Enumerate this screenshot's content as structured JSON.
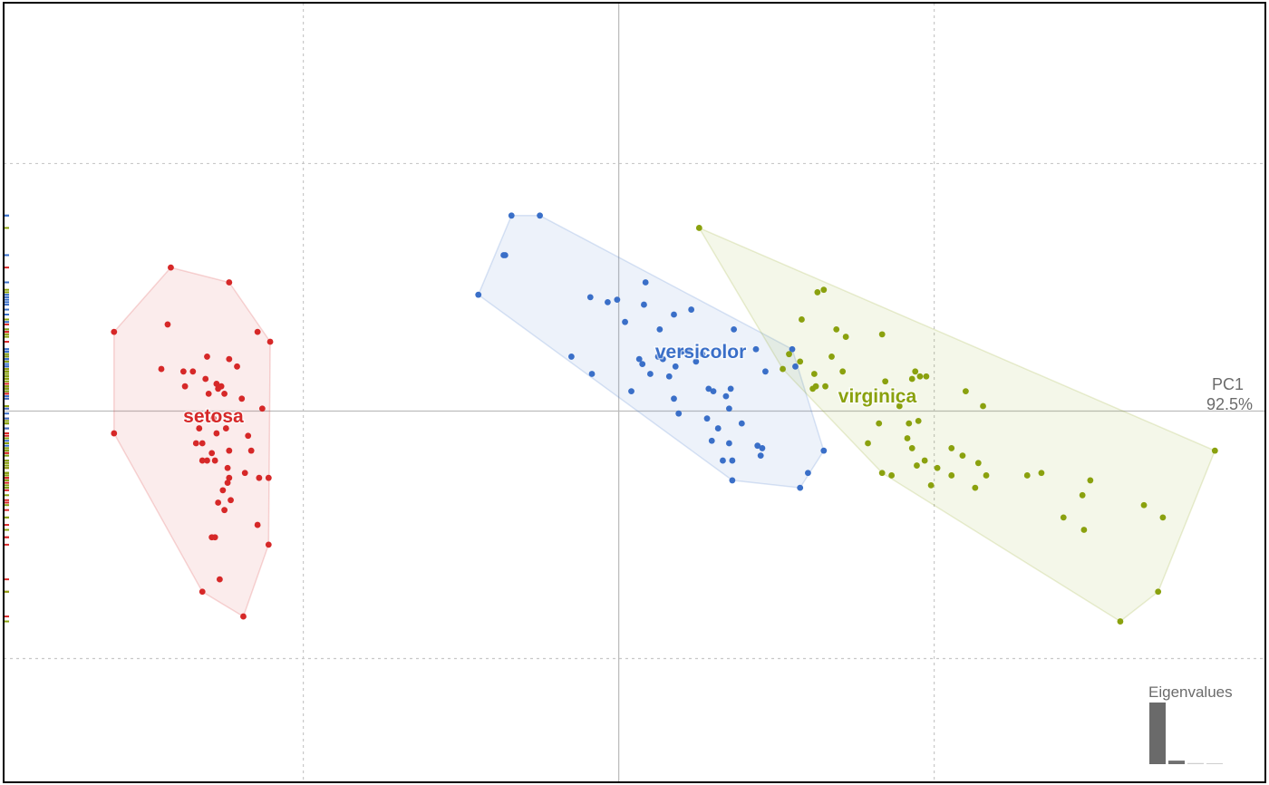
{
  "chart_data": {
    "type": "scatter",
    "title": "",
    "xlabel": "PC1",
    "x_variance": "92.5%",
    "xlim": [
      -3.9,
      4.1
    ],
    "ylim": [
      -1.5,
      1.65
    ],
    "grid": "dashed",
    "hulls": true,
    "rug": "left",
    "series": [
      {
        "name": "setosa",
        "color": "#d62828",
        "label_at": [
          -2.57,
          -0.02
        ],
        "points": [
          [
            -2.84,
            0.58
          ],
          [
            -2.47,
            0.52
          ],
          [
            -2.29,
            0.32
          ],
          [
            -2.21,
            0.28
          ],
          [
            -2.86,
            0.35
          ],
          [
            -2.47,
            0.21
          ],
          [
            -2.42,
            0.18
          ],
          [
            -2.52,
            0.1
          ],
          [
            -2.55,
            0.11
          ],
          [
            -2.6,
            0.07
          ],
          [
            -2.5,
            0.07
          ],
          [
            -2.39,
            0.05
          ],
          [
            -2.61,
            0.22
          ],
          [
            -2.7,
            0.16
          ],
          [
            -2.9,
            0.17
          ],
          [
            -2.62,
            0.13
          ],
          [
            -2.76,
            0.16
          ],
          [
            -2.33,
            -0.16
          ],
          [
            -2.66,
            -0.07
          ],
          [
            -2.49,
            -0.07
          ],
          [
            -2.35,
            -0.1
          ],
          [
            -2.75,
            0.1
          ],
          [
            -2.54,
            0.09
          ],
          [
            -2.26,
            0.01
          ],
          [
            -2.55,
            -0.09
          ],
          [
            -2.64,
            -0.13
          ],
          [
            -2.68,
            -0.13
          ],
          [
            -2.47,
            -0.16
          ],
          [
            -2.58,
            -0.17
          ],
          [
            -2.64,
            -0.2
          ],
          [
            -2.56,
            -0.2
          ],
          [
            -2.61,
            -0.2
          ],
          [
            -2.48,
            -0.23
          ],
          [
            -2.37,
            -0.25
          ],
          [
            -2.28,
            -0.27
          ],
          [
            -2.48,
            -0.29
          ],
          [
            -2.51,
            -0.32
          ],
          [
            -2.54,
            -0.37
          ],
          [
            -2.47,
            -0.27
          ],
          [
            -2.46,
            -0.36
          ],
          [
            -2.5,
            -0.4
          ],
          [
            -2.56,
            -0.51
          ],
          [
            -2.58,
            -0.51
          ],
          [
            -2.29,
            -0.46
          ],
          [
            -2.22,
            -0.54
          ],
          [
            -2.64,
            -0.73
          ],
          [
            -2.53,
            -0.68
          ],
          [
            -2.38,
            -0.83
          ],
          [
            -3.2,
            -0.09
          ],
          [
            -3.2,
            0.32
          ],
          [
            -2.22,
            -0.27
          ],
          [
            -2.57,
            -0.03
          ]
        ]
      },
      {
        "name": "versicolor",
        "color": "#3a6fc8",
        "label_at": [
          0.52,
          0.24
        ],
        "points": [
          [
            -0.89,
            0.47
          ],
          [
            -0.68,
            0.79
          ],
          [
            -0.73,
            0.63
          ],
          [
            -0.72,
            0.63
          ],
          [
            -0.5,
            0.79
          ],
          [
            -0.18,
            0.46
          ],
          [
            -0.07,
            0.44
          ],
          [
            -0.01,
            0.45
          ],
          [
            0.04,
            0.36
          ],
          [
            0.16,
            0.43
          ],
          [
            0.17,
            0.52
          ],
          [
            0.26,
            0.33
          ],
          [
            0.35,
            0.39
          ],
          [
            0.46,
            0.41
          ],
          [
            -0.3,
            0.22
          ],
          [
            -0.17,
            0.15
          ],
          [
            0.13,
            0.21
          ],
          [
            0.25,
            0.22
          ],
          [
            0.28,
            0.21
          ],
          [
            0.36,
            0.18
          ],
          [
            0.4,
            0.24
          ],
          [
            0.53,
            0.23
          ],
          [
            0.73,
            0.33
          ],
          [
            0.15,
            0.19
          ],
          [
            0.2,
            0.15
          ],
          [
            0.32,
            0.14
          ],
          [
            0.44,
            0.24
          ],
          [
            0.49,
            0.2
          ],
          [
            0.08,
            0.08
          ],
          [
            0.35,
            0.05
          ],
          [
            0.6,
            0.08
          ],
          [
            0.71,
            0.09
          ],
          [
            0.57,
            0.09
          ],
          [
            0.68,
            0.06
          ],
          [
            0.7,
            0.01
          ],
          [
            0.38,
            -0.01
          ],
          [
            0.87,
            0.25
          ],
          [
            0.93,
            0.16
          ],
          [
            0.56,
            -0.03
          ],
          [
            0.63,
            -0.07
          ],
          [
            0.78,
            -0.05
          ],
          [
            0.88,
            -0.14
          ],
          [
            0.7,
            -0.13
          ],
          [
            0.91,
            -0.15
          ],
          [
            0.66,
            -0.2
          ],
          [
            0.72,
            -0.2
          ],
          [
            0.59,
            -0.12
          ],
          [
            0.9,
            -0.18
          ],
          [
            1.2,
            -0.25
          ],
          [
            1.15,
            -0.31
          ],
          [
            1.3,
            -0.16
          ],
          [
            0.72,
            -0.28
          ],
          [
            1.12,
            0.18
          ],
          [
            1.1,
            0.25
          ]
        ]
      },
      {
        "name": "virginica",
        "color": "#8aa10e",
        "label_at": [
          1.64,
          0.06
        ],
        "points": [
          [
            0.51,
            0.74
          ],
          [
            1.26,
            0.48
          ],
          [
            1.3,
            0.49
          ],
          [
            1.16,
            0.37
          ],
          [
            1.38,
            0.33
          ],
          [
            1.44,
            0.3
          ],
          [
            1.67,
            0.31
          ],
          [
            1.35,
            0.22
          ],
          [
            1.08,
            0.23
          ],
          [
            1.24,
            0.15
          ],
          [
            1.25,
            0.1
          ],
          [
            1.15,
            0.2
          ],
          [
            1.23,
            0.09
          ],
          [
            1.31,
            0.1
          ],
          [
            1.42,
            0.16
          ],
          [
            1.69,
            0.12
          ],
          [
            1.86,
            0.13
          ],
          [
            1.91,
            0.14
          ],
          [
            1.9,
            -0.04
          ],
          [
            1.88,
            0.16
          ],
          [
            1.95,
            0.14
          ],
          [
            2.2,
            0.08
          ],
          [
            2.31,
            0.02
          ],
          [
            1.78,
            0.02
          ],
          [
            1.84,
            -0.05
          ],
          [
            1.83,
            -0.11
          ],
          [
            1.86,
            -0.15
          ],
          [
            1.89,
            -0.22
          ],
          [
            2.11,
            -0.15
          ],
          [
            2.18,
            -0.18
          ],
          [
            2.11,
            -0.26
          ],
          [
            2.26,
            -0.31
          ],
          [
            2.02,
            -0.23
          ],
          [
            2.28,
            -0.21
          ],
          [
            2.33,
            -0.26
          ],
          [
            1.98,
            -0.3
          ],
          [
            1.94,
            -0.2
          ],
          [
            1.65,
            -0.05
          ],
          [
            1.58,
            -0.13
          ],
          [
            1.73,
            -0.26
          ],
          [
            2.59,
            -0.26
          ],
          [
            2.68,
            -0.25
          ],
          [
            2.82,
            -0.43
          ],
          [
            2.94,
            -0.34
          ],
          [
            2.99,
            -0.28
          ],
          [
            3.45,
            -0.43
          ],
          [
            3.33,
            -0.38
          ],
          [
            2.95,
            -0.48
          ],
          [
            3.42,
            -0.73
          ],
          [
            3.18,
            -0.85
          ],
          [
            3.78,
            -0.16
          ],
          [
            1.67,
            -0.25
          ],
          [
            1.04,
            0.17
          ]
        ]
      }
    ],
    "eigenvalues": {
      "title": "Eigenvalues",
      "values": [
        92.5,
        5.3,
        1.7,
        0.5
      ]
    }
  }
}
